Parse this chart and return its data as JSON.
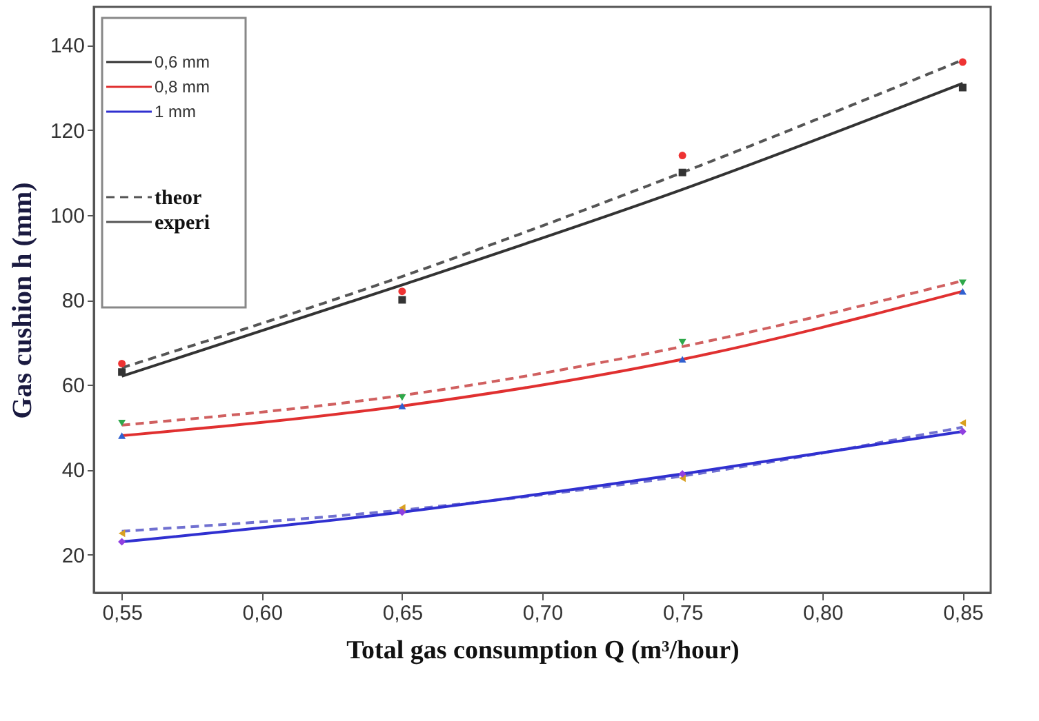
{
  "chart_data": {
    "type": "line",
    "xlabel": "Total gas consumption Q (m³/hour)",
    "ylabel": "Gas cushion h (mm)",
    "x": [
      0.55,
      0.65,
      0.75,
      0.85
    ],
    "xlim": [
      0.54,
      0.86
    ],
    "xticks": [
      {
        "value": 0.55,
        "label": "0,55"
      },
      {
        "value": 0.6,
        "label": "0,60"
      },
      {
        "value": 0.65,
        "label": "0,65"
      },
      {
        "value": 0.7,
        "label": "0,70"
      },
      {
        "value": 0.75,
        "label": "0,75"
      },
      {
        "value": 0.8,
        "label": "0,80"
      },
      {
        "value": 0.85,
        "label": "0,85"
      }
    ],
    "ylim": [
      11,
      149
    ],
    "yticks": [
      20,
      40,
      60,
      80,
      100,
      120,
      140
    ],
    "grid": false,
    "legend": "top left",
    "annotations": [
      "theor",
      "experi"
    ],
    "series": [
      {
        "color": "#555555",
        "line_style": "dashed",
        "marker": "none",
        "values": [
          64,
          85.5,
          110,
          136.5
        ]
      },
      {
        "name": "0,6 mm",
        "color": "#333333",
        "line_style": "solid",
        "marker": "none",
        "values": [
          62,
          83.5,
          106,
          131
        ]
      },
      {
        "color": "#d06060",
        "line_style": "dashed",
        "marker": "none",
        "values": [
          50.5,
          57.5,
          69,
          84.5
        ]
      },
      {
        "name": "0,8 mm",
        "color": "#e03030",
        "line_style": "solid",
        "marker": "none",
        "values": [
          48,
          55,
          66,
          82
        ]
      },
      {
        "color": "#7070d0",
        "line_style": "dashed",
        "marker": "none",
        "values": [
          25.5,
          30.5,
          38.5,
          50
        ]
      },
      {
        "name": "1 mm",
        "color": "#3030d0",
        "line_style": "solid",
        "marker": "none",
        "values": [
          23,
          30,
          39,
          49
        ]
      },
      {
        "type": "scatter",
        "color": "#ee3333",
        "marker": "circle",
        "values": [
          65,
          82,
          114,
          136
        ]
      },
      {
        "type": "scatter",
        "color": "#333333",
        "marker": "square",
        "values": [
          63,
          80,
          110,
          130
        ]
      },
      {
        "type": "scatter",
        "color": "#2ea84a",
        "marker": "triangle-down",
        "values": [
          51,
          57,
          70,
          84
        ]
      },
      {
        "type": "scatter",
        "color": "#3060d0",
        "marker": "triangle",
        "values": [
          48,
          55,
          66,
          82
        ]
      },
      {
        "type": "scatter",
        "color": "#d9a020",
        "marker": "triangle-left",
        "values": [
          25,
          31,
          38,
          51
        ]
      },
      {
        "type": "scatter",
        "color": "#9040e0",
        "marker": "diamond",
        "values": [
          23,
          30,
          39,
          49
        ]
      }
    ]
  }
}
